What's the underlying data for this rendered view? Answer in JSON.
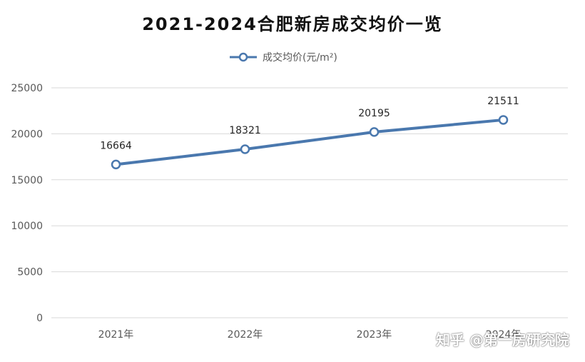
{
  "chart_data": {
    "type": "line",
    "title": "2021-2024合肥新房成交均价一览",
    "categories": [
      "2021年",
      "2022年",
      "2023年",
      "2024年"
    ],
    "series": [
      {
        "name": "成交均价(元/m²)",
        "values": [
          16664,
          18321,
          20195,
          21511
        ]
      }
    ],
    "y_ticks": [
      "0",
      "5000",
      "10000",
      "15000",
      "20000",
      "25000"
    ],
    "ylim": [
      0,
      25000
    ],
    "xlabel": "",
    "ylabel": "",
    "grid": true,
    "legend_position": "top-center",
    "data_labels": [
      "16664",
      "18321",
      "20195",
      "21511"
    ],
    "colors": {
      "line": "#4a78ae",
      "marker_fill": "#ffffff",
      "grid": "#d9d9d9",
      "axis_text": "#595959"
    }
  },
  "watermark": {
    "brand": "知乎 @第一房研究院"
  }
}
